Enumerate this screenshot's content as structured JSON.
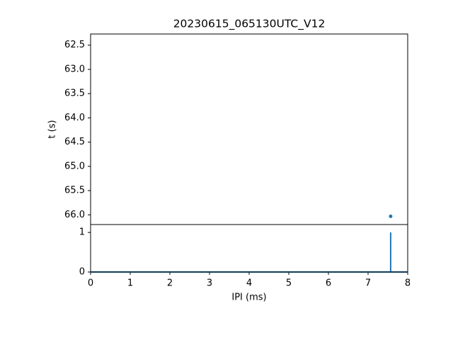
{
  "chart_data": [
    {
      "type": "scatter",
      "title": "20230615_065130UTC_V12",
      "y_label": "t (s)",
      "series": [
        {
          "color": "#1f77b4",
          "x": [
            7.57
          ],
          "values": [
            66.03
          ]
        }
      ],
      "xlim": [
        0,
        8
      ],
      "ylim": [
        66.2,
        62.27
      ],
      "yticks": [
        {
          "value": 62.5,
          "label": "62.5"
        },
        {
          "value": 63,
          "label": "63.0"
        },
        {
          "value": 63.5,
          "label": "63.5"
        },
        {
          "value": 64,
          "label": "64.0"
        },
        {
          "value": 64.5,
          "label": "64.5"
        },
        {
          "value": 65,
          "label": "65.0"
        },
        {
          "value": 65.5,
          "label": "65.5"
        },
        {
          "value": 66,
          "label": "66.0"
        }
      ]
    },
    {
      "type": "line",
      "x_label": "IPI (ms)",
      "series": [
        {
          "color": "#1f77b4",
          "x": [
            0,
            7.57,
            7.57,
            7.57,
            8
          ],
          "values": [
            0,
            0,
            1,
            0,
            0
          ]
        }
      ],
      "xlim": [
        0,
        8
      ],
      "ylim": [
        0,
        1.2
      ],
      "xticks": [
        0,
        1,
        2,
        3,
        4,
        5,
        6,
        7,
        8
      ],
      "yticks": [
        0,
        1
      ]
    }
  ]
}
